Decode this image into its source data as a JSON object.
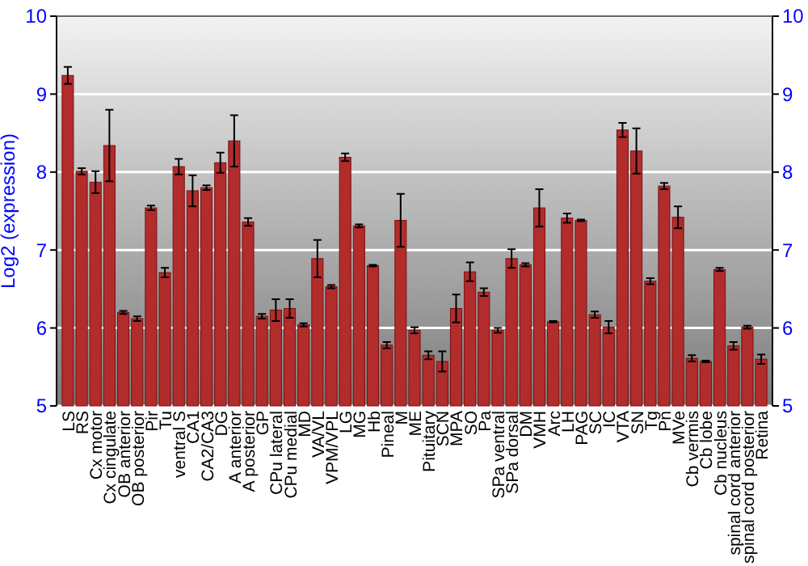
{
  "chart_data": {
    "type": "bar",
    "ylabel": "Log2 (expression)",
    "categories": [
      "LS",
      "RS",
      "Cx motor",
      "Cx cingulate",
      "OB anterior",
      "OB posterior",
      "Pir",
      "Tu",
      "ventral S",
      "CA1",
      "CA2/CA3",
      "DG",
      "A anterior",
      "A posterior",
      "GP",
      "CPu lateral",
      "CPu medial",
      "MD",
      "VA/VL",
      "VPM/VPL",
      "LG",
      "MG",
      "Hb",
      "Pineal",
      "M",
      "ME",
      "Pituitary",
      "SCN",
      "MPA",
      "SO",
      "Pa",
      "SPa ventral",
      "SPa dorsal",
      "DM",
      "VMH",
      "Arc",
      "LH",
      "PAG",
      "SC",
      "IC",
      "VTA",
      "SN",
      "Tg",
      "Pn",
      "MVe",
      "Cb vermis",
      "Cb lobe",
      "Cb nucleus",
      "spinal cord anterior",
      "spinal cord posterior",
      "Retina"
    ],
    "values": [
      9.24,
      8.01,
      7.87,
      8.34,
      6.2,
      6.12,
      7.54,
      6.71,
      8.07,
      7.76,
      7.8,
      8.12,
      8.4,
      7.36,
      6.15,
      6.23,
      6.25,
      6.04,
      6.89,
      6.53,
      8.19,
      7.31,
      6.8,
      5.78,
      7.38,
      5.97,
      5.65,
      5.57,
      6.25,
      6.72,
      6.46,
      5.97,
      6.89,
      6.81,
      7.54,
      6.08,
      7.41,
      7.38,
      6.17,
      6.01,
      8.54,
      8.27,
      6.6,
      7.82,
      7.42,
      5.61,
      5.57,
      6.75,
      5.77,
      6.01,
      5.6
    ],
    "errors": [
      0.11,
      0.04,
      0.14,
      0.46,
      0.02,
      0.03,
      0.03,
      0.06,
      0.1,
      0.2,
      0.03,
      0.13,
      0.33,
      0.05,
      0.03,
      0.14,
      0.12,
      0.02,
      0.24,
      0.02,
      0.05,
      0.02,
      0.01,
      0.04,
      0.34,
      0.04,
      0.05,
      0.13,
      0.18,
      0.12,
      0.05,
      0.03,
      0.12,
      0.02,
      0.24,
      0.01,
      0.06,
      0.01,
      0.04,
      0.08,
      0.09,
      0.29,
      0.04,
      0.04,
      0.14,
      0.04,
      0.01,
      0.02,
      0.05,
      0.02,
      0.06
    ],
    "color": "#b22c2c",
    "ylim": [
      5,
      10
    ],
    "yticks": [
      5,
      6,
      7,
      8,
      9,
      10
    ],
    "y2lim": [
      5,
      10
    ],
    "y2ticks": [
      5,
      6,
      7,
      8,
      9,
      10
    ],
    "grid": "y"
  }
}
